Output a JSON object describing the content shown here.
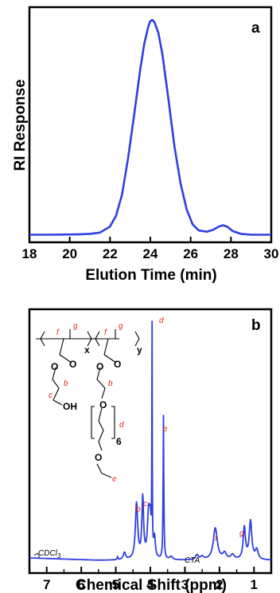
{
  "chart_data": [
    {
      "type": "line",
      "panel": "a",
      "xlabel": "Elution Time (min)",
      "ylabel": "RI Response",
      "xlim": [
        18,
        30
      ],
      "xticks": [
        "18",
        "20",
        "22",
        "24",
        "26",
        "28",
        "30"
      ],
      "color": "#2f3fe0",
      "series": [
        {
          "x": [
            18,
            19,
            20,
            20.5,
            21,
            21.5,
            22,
            22.3,
            22.6,
            22.9,
            23.2,
            23.5,
            23.7,
            23.9,
            24.0,
            24.1,
            24.2,
            24.4,
            24.6,
            24.9,
            25.2,
            25.5,
            25.8,
            26.1,
            26.4,
            26.8,
            27.1,
            27.4,
            27.6,
            27.8,
            28.1,
            28.5,
            29,
            30
          ],
          "y": [
            0.002,
            0.002,
            0.003,
            0.004,
            0.006,
            0.012,
            0.04,
            0.09,
            0.19,
            0.36,
            0.56,
            0.77,
            0.89,
            0.97,
            0.995,
            1.0,
            0.99,
            0.94,
            0.84,
            0.63,
            0.41,
            0.24,
            0.12,
            0.05,
            0.022,
            0.016,
            0.024,
            0.04,
            0.046,
            0.04,
            0.018,
            0.006,
            0.002,
            0.002
          ]
        }
      ]
    },
    {
      "type": "line",
      "panel": "b",
      "xlabel": "Chemical Shift (ppm)",
      "xlim": [
        7.5,
        0.5
      ],
      "xticks": [
        "7",
        "6",
        "5",
        "4",
        "3",
        "2",
        "1"
      ],
      "color": "#2f3fe0",
      "peak_labels": [
        {
          "text": "d",
          "x": 3.95
        },
        {
          "text": "e",
          "x": 3.62
        },
        {
          "text": "b",
          "x": 4.38
        },
        {
          "text": "c",
          "x": 4.22
        },
        {
          "text": "f",
          "x": 2.1
        },
        {
          "text": "g",
          "x": 1.28
        }
      ],
      "notes": [
        "CDCl3",
        "CTA"
      ],
      "structure": {
        "labels": [
          "x",
          "y",
          "O",
          "O",
          "O",
          "O",
          "O",
          "O",
          "OH",
          "6",
          "f",
          "g",
          "f",
          "g",
          "b",
          "c",
          "b",
          "d",
          "e"
        ]
      }
    }
  ]
}
